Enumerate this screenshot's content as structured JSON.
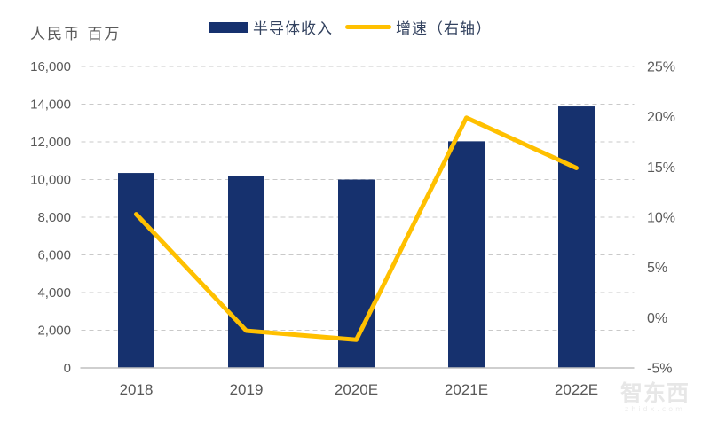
{
  "chart_data": {
    "type": "bar+line",
    "unit_label": "人民币 百万",
    "categories": [
      "2018",
      "2019",
      "2020E",
      "2021E",
      "2022E"
    ],
    "series": [
      {
        "name": "半导体收入",
        "type": "bar",
        "axis": "left",
        "color": "#16316E",
        "values": [
          10350,
          10180,
          10000,
          12030,
          13880
        ]
      },
      {
        "name": "增速（右轴）",
        "type": "line",
        "axis": "right",
        "color": "#FFC000",
        "values": [
          10.3,
          -1.3,
          -2.2,
          19.9,
          14.9
        ]
      }
    ],
    "left_axis": {
      "min": 0,
      "max": 16000,
      "step": 2000,
      "ticks": [
        0,
        2000,
        4000,
        6000,
        8000,
        10000,
        12000,
        14000,
        16000
      ],
      "tick_labels": [
        "0",
        "2,000",
        "4,000",
        "6,000",
        "8,000",
        "10,000",
        "12,000",
        "14,000",
        "16,000"
      ]
    },
    "right_axis": {
      "min": -5,
      "max": 25,
      "step": 5,
      "ticks": [
        -5,
        0,
        5,
        10,
        15,
        20,
        25
      ],
      "tick_labels": [
        "-5%",
        "0%",
        "5%",
        "10%",
        "15%",
        "20%",
        "25%"
      ]
    },
    "grid": {
      "horizontal": "dashed",
      "grid_color": "#C9C9C9",
      "axis_line_color": "#BFBFBF"
    },
    "legend_position": "top-center"
  },
  "watermark": {
    "brand": "智东西",
    "domain": "zhidx.com"
  }
}
